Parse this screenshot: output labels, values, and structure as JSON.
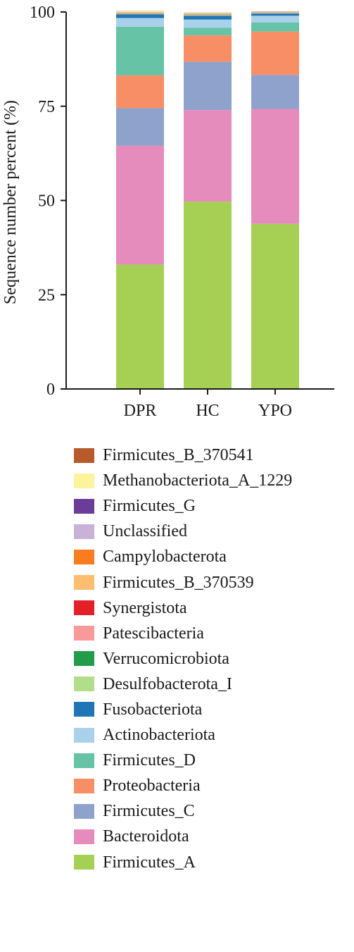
{
  "chart_data": {
    "type": "bar",
    "stacked": true,
    "categories": [
      "DPR",
      "HC",
      "YPO"
    ],
    "ylabel": "Sequence number percent (%)",
    "xlabel": "",
    "ylim": [
      0,
      100
    ],
    "yticks": [
      0,
      25,
      50,
      75,
      100
    ],
    "legend_position": "bottom",
    "series": [
      {
        "name": "Firmicutes_A",
        "color": "#a6d054",
        "values": [
          33.0,
          49.7,
          43.8
        ]
      },
      {
        "name": "Bacteroidota",
        "color": "#e68cbd",
        "values": [
          31.5,
          24.3,
          30.5
        ]
      },
      {
        "name": "Firmicutes_C",
        "color": "#8fa2cc",
        "values": [
          10.0,
          12.8,
          9.0
        ]
      },
      {
        "name": "Proteobacteria",
        "color": "#f78e66",
        "values": [
          8.7,
          7.0,
          11.5
        ]
      },
      {
        "name": "Firmicutes_D",
        "color": "#67c3a5",
        "values": [
          12.9,
          2.0,
          2.4
        ]
      },
      {
        "name": "Actinobacteriota",
        "color": "#a9d1e9",
        "values": [
          2.3,
          2.2,
          1.8
        ]
      },
      {
        "name": "Fusobacteriota",
        "color": "#1f75b5",
        "values": [
          1.0,
          1.0,
          0.6
        ]
      },
      {
        "name": "Desulfobacterota_I",
        "color": "#b2de8c",
        "values": [
          0.1,
          0.2,
          0.1
        ]
      },
      {
        "name": "Verrucomicrobiota",
        "color": "#219c4b",
        "values": [
          0.05,
          0.05,
          0.05
        ]
      },
      {
        "name": "Patescibacteria",
        "color": "#f89a99",
        "values": [
          0.05,
          0.05,
          0.05
        ]
      },
      {
        "name": "Synergistota",
        "color": "#e31f27",
        "values": [
          0.05,
          0.05,
          0.05
        ]
      },
      {
        "name": "Firmicutes_B_370539",
        "color": "#fdbe6f",
        "values": [
          0.1,
          0.1,
          0.05
        ]
      },
      {
        "name": "Campylobacterota",
        "color": "#f97d20",
        "values": [
          0.05,
          0.05,
          0.05
        ]
      },
      {
        "name": "Unclassified",
        "color": "#cab1d6",
        "values": [
          0.05,
          0.05,
          0.05
        ]
      },
      {
        "name": "Firmicutes_G",
        "color": "#6a3d98",
        "values": [
          0.05,
          0.05,
          0.05
        ]
      },
      {
        "name": "Methanobacteriota_A_1229",
        "color": "#fbf49c",
        "values": [
          0.3,
          0.2,
          0.1
        ]
      },
      {
        "name": "Firmicutes_B_370541",
        "color": "#b75a2c",
        "values": [
          0.05,
          0.05,
          0.05
        ]
      }
    ]
  }
}
